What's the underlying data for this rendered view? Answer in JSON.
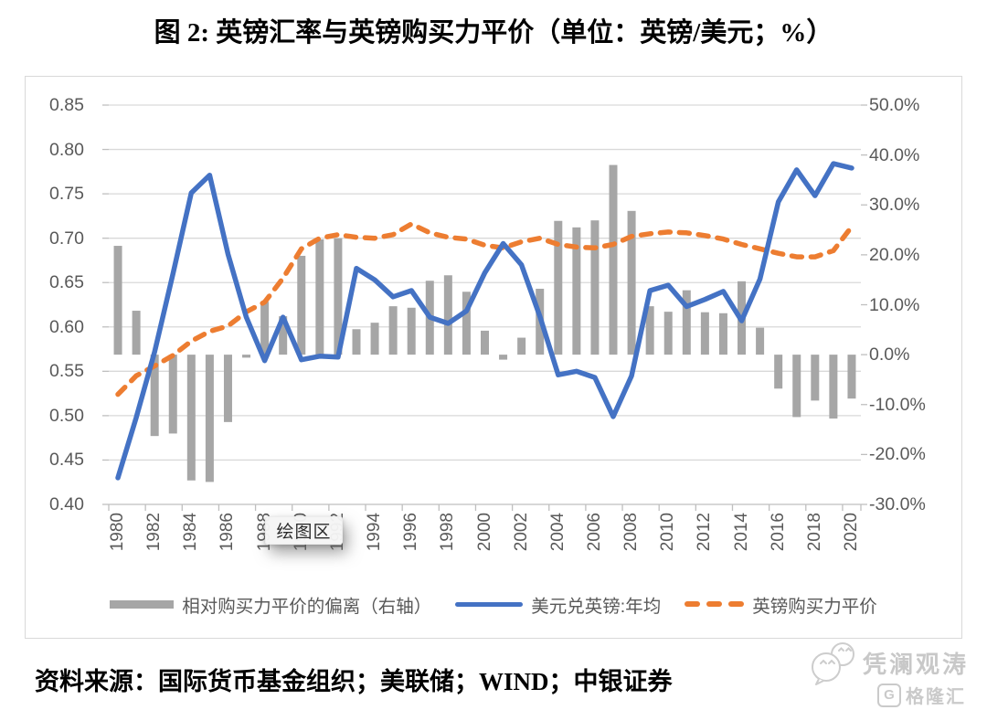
{
  "title": "图 2: 英镑汇率与英镑购买力平价（单位：英镑/美元；%）",
  "source_note": "资料来源：国际货币基金组织；美联储；WIND；中银证券",
  "tooltip_label": "绘图区",
  "watermark": {
    "account": "凭澜观涛",
    "platform": "格隆汇",
    "logo_letter": "G"
  },
  "colors": {
    "bar": "#A6A6A6",
    "line_fx": "#4472C4",
    "line_ppp": "#ED7D31",
    "grid": "#D9D9D9",
    "axis": "#BFBFBF",
    "tick_text": "#595959"
  },
  "chart_data": {
    "type": "combo",
    "title": "图 2: 英镑汇率与英镑购买力平价（单位：英镑/美元；%）",
    "categories": [
      1980,
      1981,
      1982,
      1983,
      1984,
      1985,
      1986,
      1987,
      1988,
      1989,
      1990,
      1991,
      1992,
      1993,
      1994,
      1995,
      1996,
      1997,
      1998,
      1999,
      2000,
      2001,
      2002,
      2003,
      2004,
      2005,
      2006,
      2007,
      2008,
      2009,
      2010,
      2011,
      2012,
      2013,
      2014,
      2015,
      2016,
      2017,
      2018,
      2019,
      2020
    ],
    "series": [
      {
        "name": "相对购买力平价的偏离（右轴）",
        "type": "bar",
        "axis": "right",
        "unit": "%",
        "values": [
          21.8,
          8.8,
          -16.3,
          -15.8,
          -25.2,
          -25.5,
          -13.5,
          -0.6,
          10.6,
          7.7,
          19.8,
          23.1,
          23.3,
          5.1,
          6.4,
          9.7,
          9.4,
          14.8,
          15.9,
          12.6,
          4.8,
          -1.0,
          3.4,
          13.2,
          26.8,
          25.5,
          26.9,
          38.0,
          28.8,
          9.7,
          8.6,
          12.9,
          8.5,
          8.3,
          14.7,
          5.4,
          -6.8,
          -12.5,
          -9.2,
          -12.8,
          -8.8
        ]
      },
      {
        "name": "美元兑英镑:年均",
        "type": "line",
        "axis": "left",
        "unit": "英镑/美元",
        "values": [
          0.43,
          0.498,
          0.572,
          0.66,
          0.751,
          0.771,
          0.682,
          0.611,
          0.562,
          0.611,
          0.563,
          0.567,
          0.566,
          0.666,
          0.653,
          0.634,
          0.641,
          0.611,
          0.604,
          0.618,
          0.661,
          0.694,
          0.67,
          0.612,
          0.546,
          0.55,
          0.543,
          0.499,
          0.545,
          0.641,
          0.647,
          0.623,
          0.631,
          0.64,
          0.607,
          0.654,
          0.741,
          0.777,
          0.748,
          0.784,
          0.779
        ]
      },
      {
        "name": "英镑购买力平价",
        "type": "line",
        "dashed": true,
        "axis": "left",
        "unit": "英镑/美元",
        "values": [
          0.524,
          0.545,
          0.556,
          0.568,
          0.584,
          0.595,
          0.601,
          0.617,
          0.628,
          0.655,
          0.688,
          0.7,
          0.704,
          0.701,
          0.7,
          0.704,
          0.716,
          0.706,
          0.701,
          0.699,
          0.692,
          0.689,
          0.696,
          0.7,
          0.693,
          0.69,
          0.689,
          0.693,
          0.702,
          0.705,
          0.707,
          0.706,
          0.703,
          0.699,
          0.693,
          0.688,
          0.683,
          0.679,
          0.679,
          0.686,
          0.713
        ]
      }
    ],
    "left_axis": {
      "min": 0.4,
      "max": 0.85,
      "step": 0.05,
      "ticks": [
        "0.85",
        "0.80",
        "0.75",
        "0.70",
        "0.65",
        "0.60",
        "0.55",
        "0.50",
        "0.45",
        "0.40"
      ]
    },
    "right_axis": {
      "min": -30,
      "max": 50,
      "step": 10,
      "ticks": [
        "50.0%",
        "40.0%",
        "30.0%",
        "20.0%",
        "10.0%",
        "0.0%",
        "-10.0%",
        "-20.0%",
        "-30.0%"
      ]
    },
    "x_axis": {
      "tick_interval_years": 2,
      "labels": [
        "1980",
        "1982",
        "1984",
        "1986",
        "1988",
        "1990",
        "1992",
        "1994",
        "1996",
        "1998",
        "2000",
        "2002",
        "2004",
        "2006",
        "2008",
        "2010",
        "2012",
        "2014",
        "2016",
        "2018",
        "2020"
      ]
    },
    "grid": true,
    "legend_position": "bottom"
  }
}
